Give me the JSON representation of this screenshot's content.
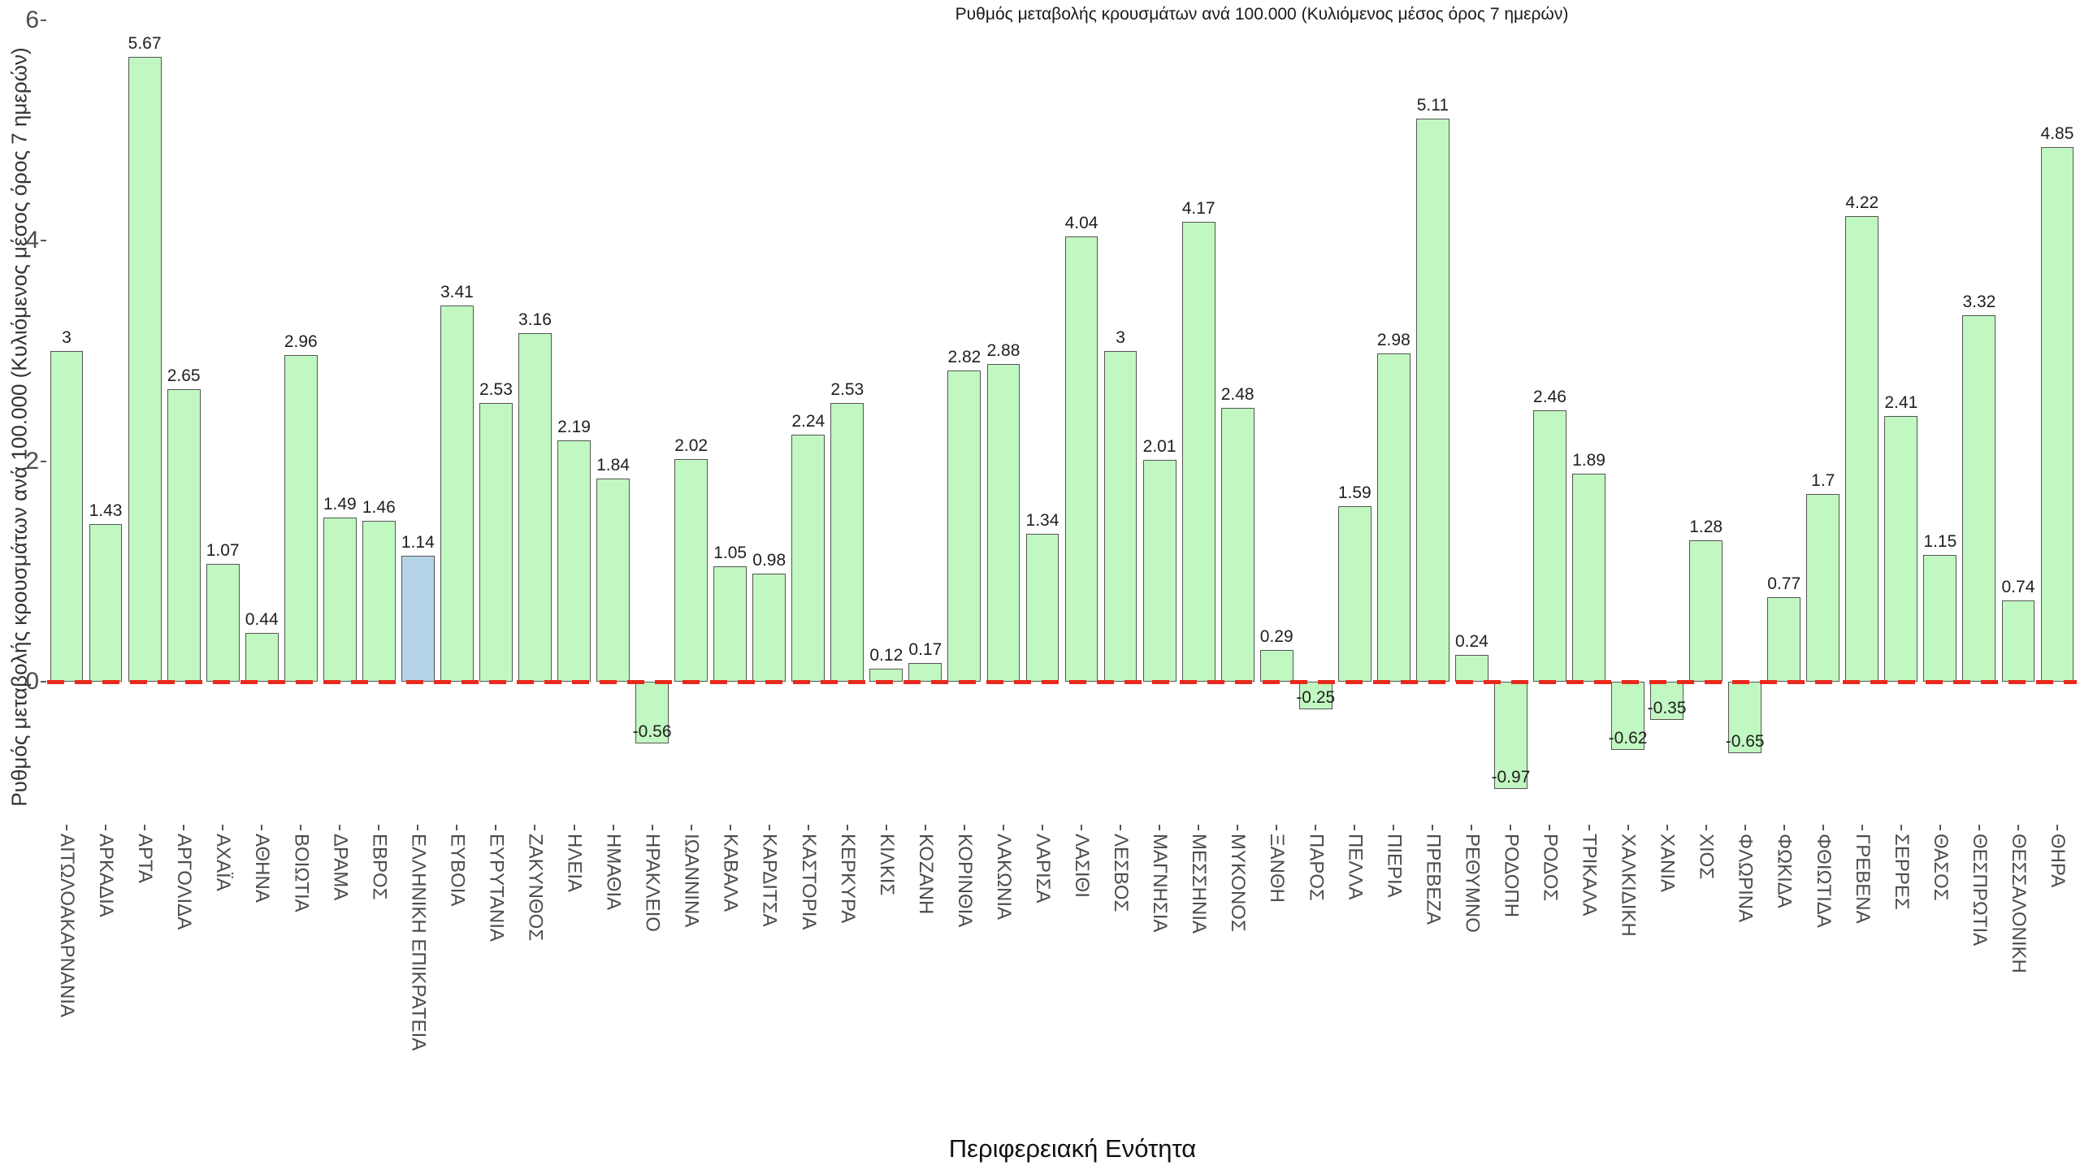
{
  "title": "Ρυθμός μεταβολής κρουσμάτων ανά 100.000 (Κυλιόμενος μέσος όρος 7 ημερών)",
  "y_axis": {
    "label": "Ρυθμός μεταβολής κρουσμάτων ανά 100.000 (Κυλιόμενος μέσος όρος 7 ημερών)",
    "tick_values": [
      0,
      2,
      4,
      6
    ]
  },
  "x_axis": {
    "label": "Περιφερειακή Ενότητα"
  },
  "colors": {
    "bar_fill": "#c1f7c1",
    "highlight_fill": "#b5d3e7",
    "bar_edge": "#555555",
    "zero_line": "#e8291c",
    "value_text": "#1f1f1f",
    "tick_text": "#4d4d4d"
  },
  "chart_data": {
    "type": "bar",
    "title": "Ρυθμός μεταβολής κρουσμάτων ανά 100.000 (Κυλιόμενος μέσος όρος 7 ημερών)",
    "xlabel": "Περιφερειακή Ενότητα",
    "ylabel": "Ρυθμός μεταβολής κρουσμάτων ανά 100.000 (Κυλιόμενος μέσος όρος 7 ημερών)",
    "ylim": [
      -1.3,
      6.0
    ],
    "yticks": [
      0,
      2,
      4,
      6
    ],
    "grid": false,
    "zero_line_style": "red-dashed",
    "highlight_category": "ΕΛΛΗΝΙΚΗ ΕΠΙΚΡΑΤΕΙΑ",
    "categories": [
      "ΑΙΤΩΛΟΑΚΑΡΝΑΝΙΑ",
      "ΑΡΚΑΔΙΑ",
      "ΑΡΤΑ",
      "ΑΡΓΟΛΙΔΑ",
      "ΑΧΑΪΑ",
      "ΑΘΗΝΑ",
      "ΒΟΙΩΤΙΑ",
      "ΔΡΑΜΑ",
      "ΕΒΡΟΣ",
      "ΕΛΛΗΝΙΚΗ ΕΠΙΚΡΑΤΕΙΑ",
      "ΕΥΒΟΙΑ",
      "ΕΥΡΥΤΑΝΙΑ",
      "ΖΑΚΥΝΘΟΣ",
      "ΗΛΕΙΑ",
      "ΗΜΑΘΙΑ",
      "ΗΡΑΚΛΕΙΟ",
      "ΙΩΑΝΝΙΝΑ",
      "ΚΑΒΑΛΑ",
      "ΚΑΡΔΙΤΣΑ",
      "ΚΑΣΤΟΡΙΑ",
      "ΚΕΡΚΥΡΑ",
      "ΚΙΛΚΙΣ",
      "ΚΟΖΑΝΗ",
      "ΚΟΡΙΝΘΙΑ",
      "ΛΑΚΩΝΙΑ",
      "ΛΑΡΙΣΑ",
      "ΛΑΣΙΘΙ",
      "ΛΕΣΒΟΣ",
      "ΜΑΓΝΗΣΙΑ",
      "ΜΕΣΣΗΝΙΑ",
      "ΜΥΚΟΝΟΣ",
      "ΞΑΝΘΗ",
      "ΠΑΡΟΣ",
      "ΠΕΛΛΑ",
      "ΠΙΕΡΙΑ",
      "ΠΡΕΒΕΖΑ",
      "ΡΕΘΥΜΝΟ",
      "ΡΟΔΟΠΗ",
      "ΡΟΔΟΣ",
      "ΤΡΙΚΑΛΑ",
      "ΧΑΛΚΙΔΙΚΗ",
      "ΧΑΝΙΑ",
      "ΧΙΟΣ",
      "ΦΛΩΡΙΝΑ",
      "ΦΩΚΙΔΑ",
      "ΦΘΙΩΤΙΔΑ",
      "ΓΡΕΒΕΝΑ",
      "ΣΕΡΡΕΣ",
      "ΘΑΣΟΣ",
      "ΘΕΣΠΡΩΤΙΑ",
      "ΘΕΣΣΑΛΟΝΙΚΗ",
      "ΘΗΡΑ"
    ],
    "values": [
      3,
      1.43,
      5.67,
      2.65,
      1.07,
      0.44,
      2.96,
      1.49,
      1.46,
      1.14,
      3.41,
      2.53,
      3.16,
      2.19,
      1.84,
      -0.56,
      2.02,
      1.05,
      0.98,
      2.24,
      2.53,
      0.12,
      0.17,
      2.82,
      2.88,
      1.34,
      4.04,
      3,
      2.01,
      4.17,
      2.48,
      0.29,
      -0.25,
      1.59,
      2.98,
      5.11,
      0.24,
      -0.97,
      2.46,
      1.89,
      -0.62,
      -0.35,
      1.28,
      -0.65,
      0.77,
      1.7,
      4.22,
      2.41,
      1.15,
      3.32,
      0.74,
      4.85
    ],
    "value_labels": [
      "3",
      "1.43",
      "5.67",
      "2.65",
      "1.07",
      "0.44",
      "2.96",
      "1.49",
      "1.46",
      "1.14",
      "3.41",
      "2.53",
      "3.16",
      "2.19",
      "1.84",
      "-0.56",
      "2.02",
      "1.05",
      "0.98",
      "2.24",
      "2.53",
      "0.12",
      "0.17",
      "2.82",
      "2.88",
      "1.34",
      "4.04",
      "3",
      "2.01",
      "4.17",
      "2.48",
      "0.29",
      "-0.25",
      "1.59",
      "2.98",
      "5.11",
      "0.24",
      "-0.97",
      "2.46",
      "1.89",
      "-0.62",
      "-0.35",
      "1.28",
      "-0.65",
      "0.77",
      "1.7",
      "4.22",
      "2.41",
      "1.15",
      "3.32",
      "0.74",
      "4.85"
    ]
  }
}
